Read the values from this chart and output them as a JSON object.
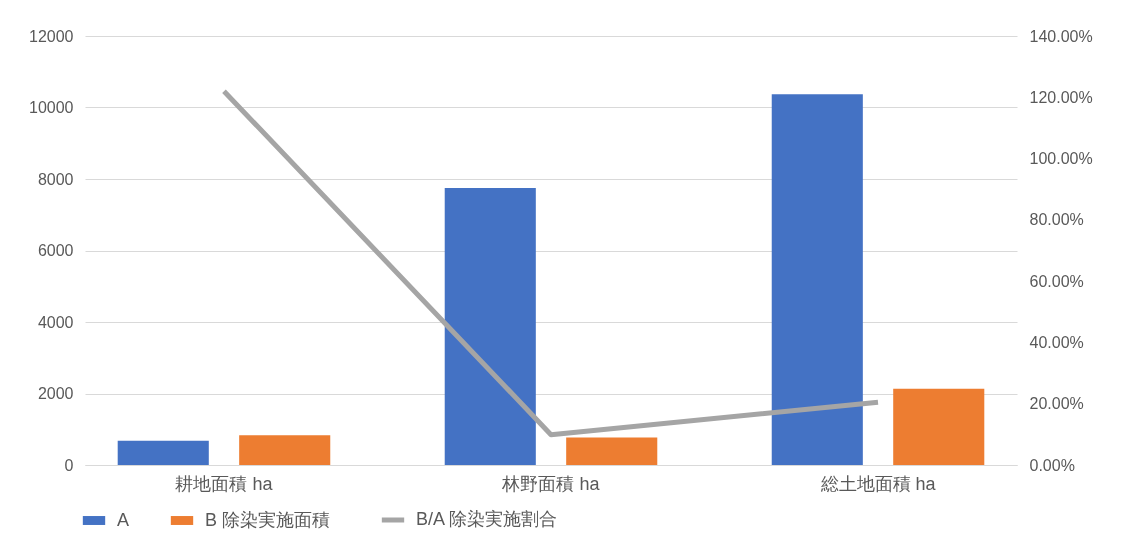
{
  "chart_data": {
    "type": "bar",
    "categories": [
      "耕地面積 ha",
      "林野面積 ha",
      "総土地面積 ha"
    ],
    "series": [
      {
        "name": "A",
        "color": "#4472c4",
        "values": [
          680,
          7750,
          10370
        ]
      },
      {
        "name": "B 除染実施面積",
        "color": "#ed7d31",
        "values": [
          830,
          770,
          2130
        ]
      },
      {
        "name": "B/A 除染実施割合",
        "type": "line",
        "axis": "y2",
        "color": "#a5a5a5",
        "values": [
          122,
          9.9,
          20.5
        ]
      }
    ],
    "ylim": [
      0,
      12000
    ],
    "yticks": [
      0,
      2000,
      4000,
      6000,
      8000,
      10000,
      12000
    ],
    "y2lim": [
      0,
      140
    ],
    "y2ticks": [
      {
        "value": 0,
        "label": "0.00%"
      },
      {
        "value": 20,
        "label": "20.00%"
      },
      {
        "value": 40,
        "label": "40.00%"
      },
      {
        "value": 60,
        "label": "60.00%"
      },
      {
        "value": 80,
        "label": "80.00%"
      },
      {
        "value": 100,
        "label": "100.00%"
      },
      {
        "value": 120,
        "label": "120.00%"
      },
      {
        "value": 140,
        "label": "140.00%"
      }
    ],
    "grid": "y",
    "legend": "bottom",
    "marker": "none",
    "line_style": "solid"
  }
}
